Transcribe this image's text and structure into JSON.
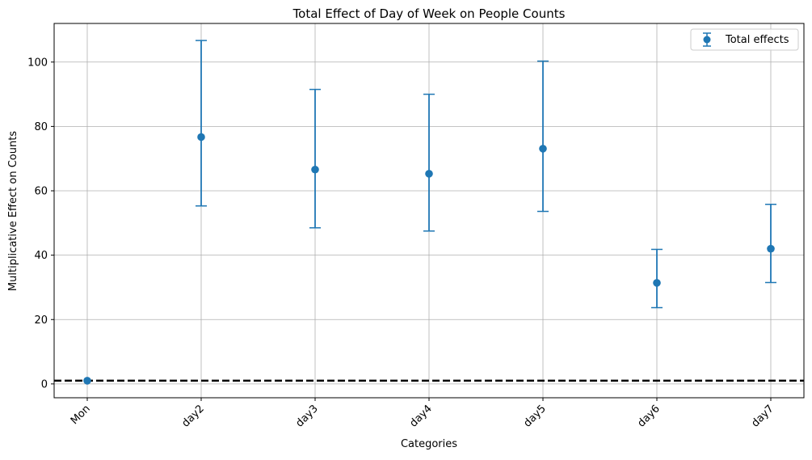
{
  "chart_data": {
    "type": "scatter",
    "title": "Total Effect of Day of Week on People Counts",
    "xlabel": "Categories",
    "ylabel": "Multiplicative Effect on Counts",
    "categories": [
      "Mon",
      "day2",
      "day3",
      "day4",
      "day5",
      "day6",
      "day7"
    ],
    "series": [
      {
        "name": "Total effects",
        "color": "#1f77b4",
        "values": [
          1.0,
          76.7,
          66.6,
          65.3,
          73.1,
          31.4,
          42.0
        ],
        "lower": [
          1.0,
          55.3,
          48.5,
          47.5,
          53.6,
          23.7,
          31.5
        ],
        "upper": [
          1.0,
          106.7,
          91.5,
          90.0,
          100.3,
          41.8,
          55.8
        ]
      }
    ],
    "reference_line": {
      "y": 1,
      "style": "dashed",
      "color": "#000000"
    },
    "ylim": [
      -4.3,
      112
    ],
    "yticks": [
      0,
      20,
      40,
      60,
      80,
      100
    ],
    "grid": true,
    "legend_position": "top-right",
    "xtick_rotation": 45
  }
}
